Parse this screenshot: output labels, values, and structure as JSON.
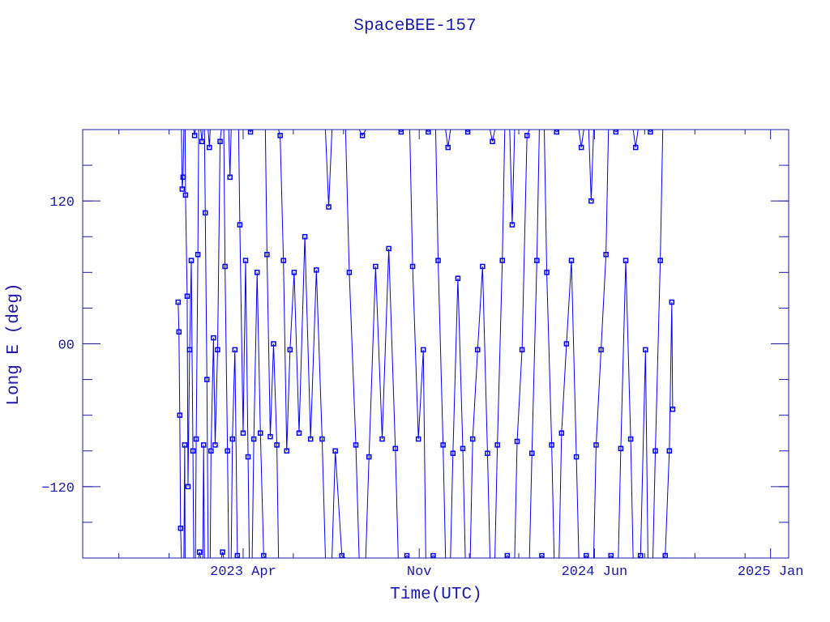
{
  "chart_data": {
    "type": "line",
    "title": "SpaceBEE-157",
    "xlabel": "Time(UTC)",
    "ylabel": "Long E (deg)",
    "xlim": [
      "2022-09-18",
      "2025-01-23"
    ],
    "ylim": [
      -180,
      180
    ],
    "x_ticks": [
      {
        "date": "2023-04-01",
        "label": "2023 Apr"
      },
      {
        "date": "2023-11-01",
        "label": "Nov"
      },
      {
        "date": "2024-06-01",
        "label": "2024 Jun"
      },
      {
        "date": "2025-01-01",
        "label": "2025 Jan"
      }
    ],
    "x_minor_ticks": [
      "2022-11-01",
      "2023-01-01",
      "2023-06-01",
      "2023-08-01",
      "2024-01-01",
      "2024-03-01",
      "2024-08-01",
      "2024-10-01",
      "2024-12-01"
    ],
    "y_ticks": [
      {
        "value": 120,
        "label": "120"
      },
      {
        "value": 0,
        "label": "00"
      },
      {
        "value": -120,
        "label": "−120"
      }
    ],
    "y_minor_step": 30,
    "grid": false,
    "marker": "square",
    "colors": {
      "series": "#0000ff",
      "axes": "#1a1ab0"
    },
    "series": [
      {
        "points": [
          [
            "2023-01-12",
            35
          ],
          [
            "2023-01-13",
            10
          ],
          [
            "2023-01-14",
            -60
          ],
          [
            "2023-01-15",
            -155
          ],
          [
            "2023-01-17",
            130
          ],
          [
            "2023-01-18",
            140
          ],
          [
            "2023-01-20",
            -85
          ],
          [
            "2023-01-21",
            125
          ],
          [
            "2023-01-23",
            40
          ],
          [
            "2023-01-24",
            -120
          ],
          [
            "2023-01-26",
            -5
          ],
          [
            "2023-01-28",
            70
          ],
          [
            "2023-01-30",
            -90
          ],
          [
            "2023-02-01",
            175
          ],
          [
            "2023-02-03",
            -80
          ],
          [
            "2023-02-05",
            75
          ],
          [
            "2023-02-07",
            -175
          ],
          [
            "2023-02-10",
            170
          ],
          [
            "2023-02-12",
            -85
          ],
          [
            "2023-02-14",
            110
          ],
          [
            "2023-02-16",
            -30
          ],
          [
            "2023-02-19",
            165
          ],
          [
            "2023-02-21",
            -90
          ],
          [
            "2023-02-24",
            5
          ],
          [
            "2023-02-26",
            -85
          ],
          [
            "2023-03-01",
            -5
          ],
          [
            "2023-03-04",
            170
          ],
          [
            "2023-03-07",
            -175
          ],
          [
            "2023-03-10",
            65
          ],
          [
            "2023-03-13",
            -90
          ],
          [
            "2023-03-16",
            140
          ],
          [
            "2023-03-19",
            -80
          ],
          [
            "2023-03-22",
            -5
          ],
          [
            "2023-03-25",
            -178
          ],
          [
            "2023-03-28",
            100
          ],
          [
            "2023-04-01",
            -75
          ],
          [
            "2023-04-04",
            70
          ],
          [
            "2023-04-07",
            -95
          ],
          [
            "2023-04-10",
            178
          ],
          [
            "2023-04-14",
            -80
          ],
          [
            "2023-04-18",
            60
          ],
          [
            "2023-04-22",
            -75
          ],
          [
            "2023-04-26",
            -178
          ],
          [
            "2023-04-30",
            75
          ],
          [
            "2023-05-04",
            -78
          ],
          [
            "2023-05-08",
            0
          ],
          [
            "2023-05-12",
            -85
          ],
          [
            "2023-05-16",
            175
          ],
          [
            "2023-05-20",
            70
          ],
          [
            "2023-05-24",
            -90
          ],
          [
            "2023-05-28",
            -5
          ],
          [
            "2023-06-02",
            60
          ],
          [
            "2023-06-08",
            -75
          ],
          [
            "2023-06-15",
            90
          ],
          [
            "2023-06-22",
            -80
          ],
          [
            "2023-06-29",
            62
          ],
          [
            "2023-07-06",
            -80
          ],
          [
            "2023-07-14",
            115
          ],
          [
            "2023-07-22",
            -90
          ],
          [
            "2023-07-30",
            -178
          ],
          [
            "2023-08-08",
            60
          ],
          [
            "2023-08-16",
            -85
          ],
          [
            "2023-08-24",
            175
          ],
          [
            "2023-09-01",
            -95
          ],
          [
            "2023-09-09",
            65
          ],
          [
            "2023-09-17",
            -80
          ],
          [
            "2023-09-25",
            80
          ],
          [
            "2023-10-03",
            -88
          ],
          [
            "2023-10-10",
            178
          ],
          [
            "2023-10-17",
            -178
          ],
          [
            "2023-10-24",
            65
          ],
          [
            "2023-10-31",
            -80
          ],
          [
            "2023-11-06",
            -5
          ],
          [
            "2023-11-12",
            178
          ],
          [
            "2023-11-18",
            -178
          ],
          [
            "2023-11-24",
            70
          ],
          [
            "2023-11-30",
            -85
          ],
          [
            "2023-12-06",
            165
          ],
          [
            "2023-12-12",
            -92
          ],
          [
            "2023-12-18",
            55
          ],
          [
            "2023-12-24",
            -88
          ],
          [
            "2023-12-30",
            178
          ],
          [
            "2024-01-05",
            -80
          ],
          [
            "2024-01-11",
            -5
          ],
          [
            "2024-01-17",
            65
          ],
          [
            "2024-01-23",
            -92
          ],
          [
            "2024-01-29",
            170
          ],
          [
            "2024-02-04",
            -85
          ],
          [
            "2024-02-10",
            70
          ],
          [
            "2024-02-16",
            -178
          ],
          [
            "2024-02-22",
            100
          ],
          [
            "2024-02-28",
            -82
          ],
          [
            "2024-03-05",
            -5
          ],
          [
            "2024-03-11",
            175
          ],
          [
            "2024-03-17",
            -92
          ],
          [
            "2024-03-23",
            70
          ],
          [
            "2024-03-29",
            -178
          ],
          [
            "2024-04-04",
            60
          ],
          [
            "2024-04-10",
            -85
          ],
          [
            "2024-04-16",
            178
          ],
          [
            "2024-04-22",
            -75
          ],
          [
            "2024-04-28",
            0
          ],
          [
            "2024-05-04",
            70
          ],
          [
            "2024-05-10",
            -95
          ],
          [
            "2024-05-16",
            165
          ],
          [
            "2024-05-22",
            -178
          ],
          [
            "2024-05-28",
            120
          ],
          [
            "2024-06-03",
            -85
          ],
          [
            "2024-06-09",
            -5
          ],
          [
            "2024-06-15",
            75
          ],
          [
            "2024-06-21",
            -178
          ],
          [
            "2024-06-27",
            178
          ],
          [
            "2024-07-03",
            -88
          ],
          [
            "2024-07-09",
            70
          ],
          [
            "2024-07-15",
            -80
          ],
          [
            "2024-07-21",
            165
          ],
          [
            "2024-07-27",
            -178
          ],
          [
            "2024-08-02",
            -5
          ],
          [
            "2024-08-08",
            178
          ],
          [
            "2024-08-14",
            -90
          ],
          [
            "2024-08-20",
            70
          ],
          [
            "2024-08-26",
            -178
          ],
          [
            "2024-08-31",
            -90
          ],
          [
            "2024-09-03",
            35
          ],
          [
            "2024-09-04",
            -55
          ]
        ]
      }
    ]
  }
}
